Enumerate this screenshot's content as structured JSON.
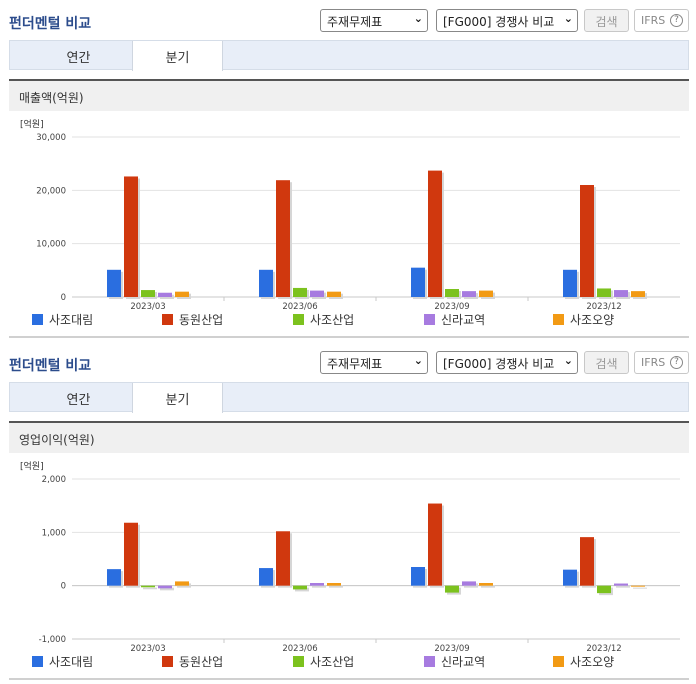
{
  "panels": [
    {
      "title": "펀더멘털 비교",
      "select1": "주재무제표",
      "select2": "[FG000] 경쟁사 비교",
      "search_label": "검색",
      "ifrs_label": "IFRS",
      "help": "?",
      "tabs": [
        "연간",
        "분기"
      ],
      "active_tab": "분기",
      "chart_title": "매출액(억원)"
    },
    {
      "title": "펀더멘털 비교",
      "select1": "주재무제표",
      "select2": "[FG000] 경쟁사 비교",
      "search_label": "검색",
      "ifrs_label": "IFRS",
      "help": "?",
      "tabs": [
        "연간",
        "분기"
      ],
      "active_tab": "분기",
      "chart_title": "영업이익(억원)"
    }
  ],
  "colors": [
    "#2a6ee0",
    "#d0380e",
    "#7cc21e",
    "#a77be0",
    "#f29a14"
  ],
  "chart_data": [
    {
      "type": "bar",
      "unit_label": "[억원]",
      "categories": [
        "2023/03",
        "2023/06",
        "2023/09",
        "2023/12"
      ],
      "ylim": [
        0,
        30000
      ],
      "yticks": [
        0,
        10000,
        20000,
        30000
      ],
      "ytick_labels": [
        "0",
        "10,000",
        "20,000",
        "30,000"
      ],
      "grid": true,
      "legend": "bottom",
      "series": [
        {
          "name": "사조대림",
          "values": [
            5100,
            5100,
            5500,
            5100
          ]
        },
        {
          "name": "동원산업",
          "values": [
            22600,
            21900,
            23700,
            21000
          ]
        },
        {
          "name": "사조산업",
          "values": [
            1300,
            1700,
            1500,
            1600
          ]
        },
        {
          "name": "신라교역",
          "values": [
            800,
            1200,
            1100,
            1300
          ]
        },
        {
          "name": "사조오양",
          "values": [
            1000,
            1000,
            1200,
            1100
          ]
        }
      ]
    },
    {
      "type": "bar",
      "unit_label": "[억원]",
      "categories": [
        "2023/03",
        "2023/06",
        "2023/09",
        "2023/12"
      ],
      "ylim": [
        -1000,
        2000
      ],
      "yticks": [
        -1000,
        0,
        1000,
        2000
      ],
      "ytick_labels": [
        "-1,000",
        "0",
        "1,000",
        "2,000"
      ],
      "grid": true,
      "legend": "bottom",
      "series": [
        {
          "name": "사조대림",
          "values": [
            310,
            330,
            350,
            300
          ]
        },
        {
          "name": "동원산업",
          "values": [
            1180,
            1020,
            1540,
            910
          ]
        },
        {
          "name": "사조산업",
          "values": [
            -30,
            -70,
            -130,
            -140
          ]
        },
        {
          "name": "신라교역",
          "values": [
            -50,
            50,
            80,
            40
          ]
        },
        {
          "name": "사조오양",
          "values": [
            80,
            50,
            50,
            0
          ]
        }
      ]
    }
  ]
}
